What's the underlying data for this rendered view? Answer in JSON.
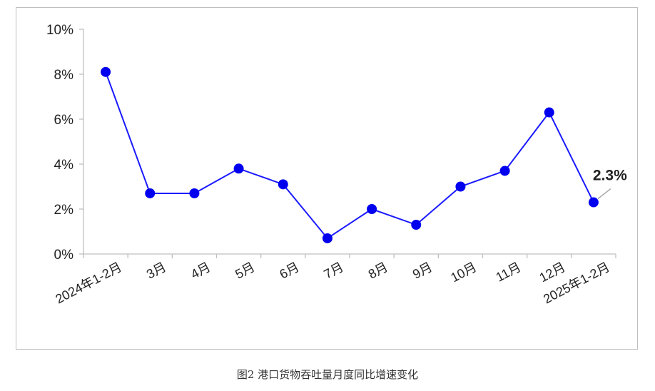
{
  "caption": "图2  港口货物吞吐量月度同比增速变化",
  "chart_data": {
    "type": "line",
    "title": "",
    "xlabel": "",
    "ylabel": "",
    "categories": [
      "2024年1-2月",
      "3月",
      "4月",
      "5月",
      "6月",
      "7月",
      "8月",
      "9月",
      "10月",
      "11月",
      "12月",
      "2025年1-2月"
    ],
    "series": [
      {
        "values": [
          8.1,
          2.7,
          2.7,
          3.8,
          3.1,
          0.7,
          2.0,
          1.3,
          3.0,
          3.7,
          6.3,
          2.3
        ]
      }
    ],
    "ylim": [
      0,
      10
    ],
    "yticks": [
      "0%",
      "2%",
      "4%",
      "6%",
      "8%",
      "10%"
    ],
    "ytick_values": [
      0,
      2,
      4,
      6,
      8,
      10
    ],
    "grid": false,
    "legend": "none",
    "annotation": {
      "category": "2025年1-2月",
      "text": "2.3%"
    },
    "line_color": "#1a1aff",
    "marker_color": "#0000ee"
  }
}
